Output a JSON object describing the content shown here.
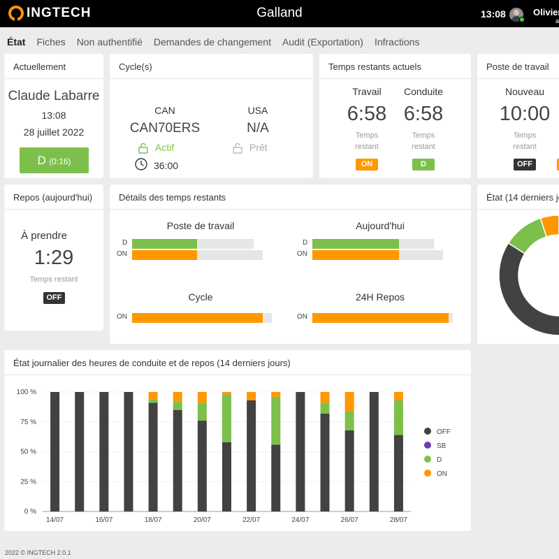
{
  "header": {
    "brand": "INGTECH",
    "title": "Galland",
    "time": "13:08",
    "user_name": "Olivier",
    "user_sub": "a"
  },
  "nav": [
    "État",
    "Fiches",
    "Non authentifié",
    "Demandes de changement",
    "Audit (Exportation)",
    "Infractions"
  ],
  "currently": {
    "title": "Actuellement",
    "driver": "Claude Labarre",
    "time": "13:08",
    "date": "28 juillet 2022",
    "status_label": "D",
    "status_duration": "(0:16)"
  },
  "cycles": {
    "title": "Cycle(s)",
    "can": {
      "label": "CAN",
      "code": "CAN70ERS",
      "state": "Actif",
      "hours": "36:00"
    },
    "usa": {
      "label": "USA",
      "code": "N/A",
      "state": "Prêt"
    }
  },
  "remaining": {
    "title": "Temps restants actuels",
    "work": {
      "label": "Travail",
      "value": "6:58",
      "sub1": "Temps",
      "sub2": "restant",
      "badge": "ON"
    },
    "drive": {
      "label": "Conduite",
      "value": "6:58",
      "sub1": "Temps",
      "sub2": "restant",
      "badge": "D"
    }
  },
  "shift": {
    "title": "Poste de travail",
    "label": "Nouveau",
    "value": "10:00",
    "sub1": "Temps",
    "sub2": "restant",
    "badge": "OFF"
  },
  "rest": {
    "title": "Repos (aujourd'hui)",
    "label": "À prendre",
    "value": "1:29",
    "sub": "Temps restant",
    "badge": "OFF"
  },
  "details": {
    "title": "Détails des temps restants",
    "groups": [
      {
        "title": "Poste de travail",
        "bars": [
          {
            "label": "D",
            "fill": 0.54,
            "total": 0.97,
            "color": "#7cc04b"
          },
          {
            "label": "ON",
            "fill": 0.5,
            "total": 1.0,
            "color": "#ff9800"
          }
        ]
      },
      {
        "title": "Aujourd'hui",
        "bars": [
          {
            "label": "D",
            "fill": 0.72,
            "total": 0.97,
            "color": "#7cc04b"
          },
          {
            "label": "ON",
            "fill": 0.72,
            "total": 1.0,
            "color": "#ff9800"
          }
        ]
      },
      {
        "title": "Cycle",
        "bars": [
          {
            "label": "ON",
            "fill": 0.93,
            "total": 1.0,
            "color": "#ff9800"
          }
        ]
      },
      {
        "title": "24H Repos",
        "bars": [
          {
            "label": "ON",
            "fill": 0.97,
            "total": 1.0,
            "color": "#ff9800"
          }
        ]
      }
    ]
  },
  "state14": {
    "title": "État (14 derniers jours)",
    "slices": [
      {
        "name": "OFF",
        "value": 0.84,
        "color": "#424242"
      },
      {
        "name": "D",
        "value": 0.11,
        "color": "#7cc04b"
      },
      {
        "name": "ON",
        "value": 0.05,
        "color": "#ff9800"
      }
    ]
  },
  "chart_data": {
    "type": "bar",
    "title": "État journalier des heures de conduite et de repos (14 derniers jours)",
    "categories": [
      "14/07",
      "15/07",
      "16/07",
      "17/07",
      "18/07",
      "19/07",
      "20/07",
      "21/07",
      "22/07",
      "23/07",
      "24/07",
      "25/07",
      "26/07",
      "27/07",
      "28/07"
    ],
    "tick_labels": [
      "14/07",
      "16/07",
      "18/07",
      "20/07",
      "22/07",
      "24/07",
      "26/07",
      "28/07"
    ],
    "yticks": [
      "0 %",
      "25 %",
      "50 %",
      "75 %",
      "100 %"
    ],
    "ylim": [
      0,
      100
    ],
    "stacked": true,
    "legend_position": "right",
    "series": [
      {
        "name": "OFF",
        "color": "#424242",
        "values": [
          100,
          100,
          100,
          100,
          91,
          85,
          76,
          58,
          93,
          56,
          100,
          82,
          68,
          100,
          64
        ]
      },
      {
        "name": "SB",
        "color": "#6a3fb5",
        "values": [
          0,
          0,
          0,
          0,
          0,
          0,
          0,
          0,
          0,
          0,
          0,
          0,
          0,
          0,
          0
        ]
      },
      {
        "name": "D",
        "color": "#7cc04b",
        "values": [
          0,
          0,
          0,
          0,
          3,
          7,
          15,
          40,
          0,
          40,
          0,
          9,
          16,
          0,
          29
        ]
      },
      {
        "name": "ON",
        "color": "#ff9800",
        "values": [
          0,
          0,
          0,
          0,
          6,
          8,
          9,
          2,
          7,
          4,
          0,
          9,
          16,
          0,
          7
        ]
      }
    ]
  },
  "footer": "2022 © INGTECH 2.0.1"
}
